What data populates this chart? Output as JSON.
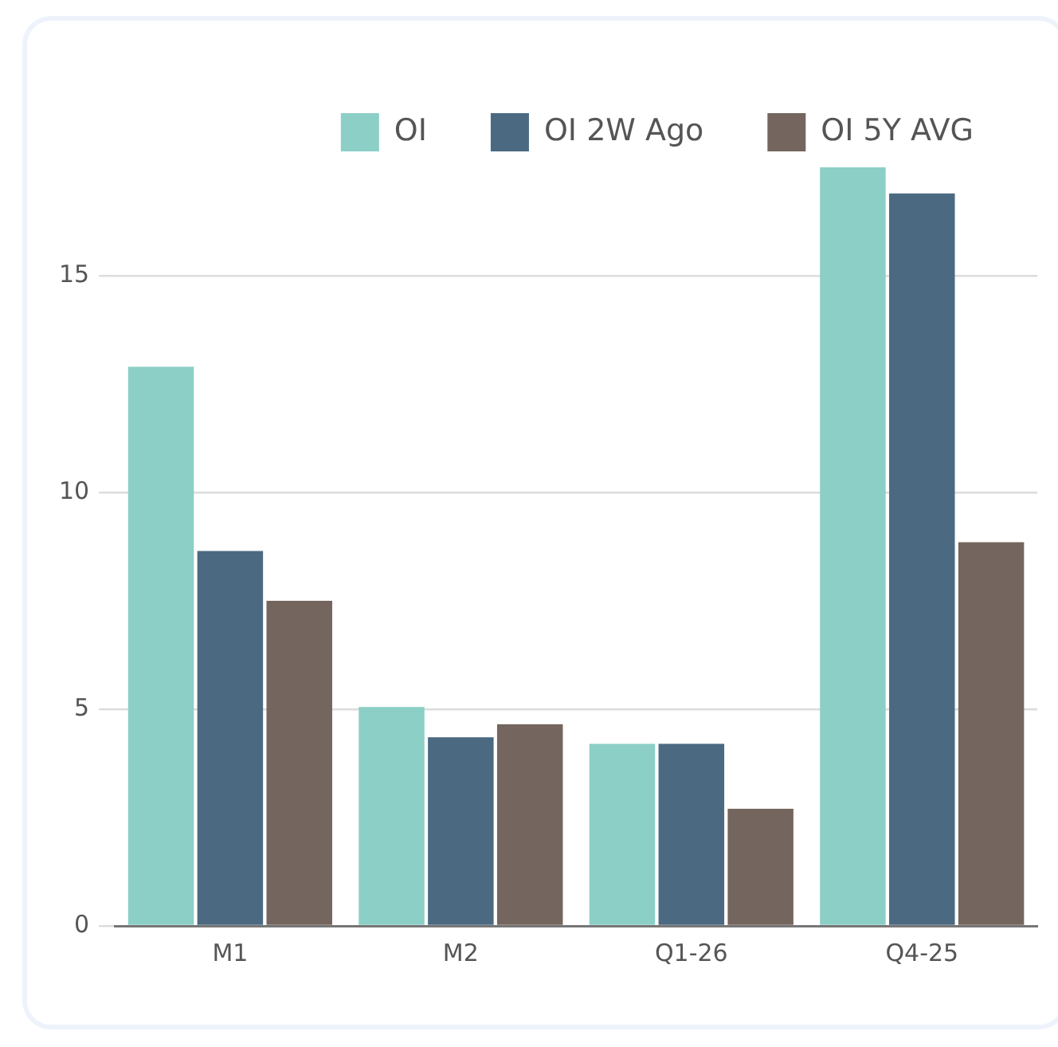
{
  "chart_data": {
    "type": "bar",
    "categories": [
      "M1",
      "M2",
      "Q1-26",
      "Q4-25"
    ],
    "series": [
      {
        "name": "OI",
        "color": "#8ccfc7",
        "values": [
          12.9,
          5.05,
          4.2,
          17.5
        ]
      },
      {
        "name": "OI 2W Ago",
        "color": "#4b6a82",
        "values": [
          8.65,
          4.35,
          4.2,
          16.9
        ]
      },
      {
        "name": "OI 5Y AVG",
        "color": "#74665e",
        "values": [
          7.5,
          4.65,
          2.7,
          8.85
        ]
      }
    ],
    "ylim": [
      0,
      17.5
    ],
    "yticks": [
      0,
      5,
      10,
      15
    ],
    "grid": "y",
    "legend": "top right"
  }
}
